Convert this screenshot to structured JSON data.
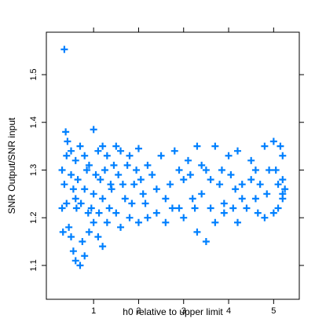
{
  "chart_data": {
    "type": "scatter",
    "x_label": "h0 relative to upper limit",
    "y_label": "SNR Output/SNR input",
    "color": "#0080ff",
    "xlim": [
      -0.05,
      5.57
    ],
    "ylim": [
      1.029,
      1.589
    ],
    "xticks": [
      1,
      2,
      3,
      4,
      5
    ],
    "yticks": [
      1.1,
      1.2,
      1.3,
      1.4,
      1.5
    ],
    "x": [
      0.35,
      0.38,
      1.0,
      0.3,
      0.4,
      0.5,
      0.6,
      0.7,
      0.8,
      0.9,
      1.1,
      1.2,
      1.3,
      1.5,
      1.6,
      1.8,
      2.0,
      2.2,
      2.5,
      2.8,
      3.1,
      3.3,
      3.5,
      3.7,
      4.0,
      4.2,
      4.5,
      4.8,
      5.0,
      5.15,
      5.2,
      4.9,
      5.25,
      5.1,
      5.2,
      4.6,
      4.3,
      4.1,
      3.9,
      3.6,
      3.4,
      3.2,
      3.0,
      2.7,
      2.4,
      2.1,
      1.9,
      1.7,
      1.4,
      1.2,
      1.0,
      0.8,
      0.6,
      0.4,
      0.3,
      0.45,
      0.5,
      0.55,
      0.6,
      0.7,
      0.8,
      0.75,
      0.9,
      1.0,
      1.1,
      1.2,
      1.3,
      1.5,
      1.6,
      1.8,
      2.0,
      2.2,
      2.4,
      2.6,
      2.9,
      3.0,
      3.3,
      3.5,
      3.7,
      3.9,
      4.2,
      4.4,
      4.6,
      4.8,
      5.0,
      5.2,
      0.35,
      0.5,
      0.65,
      0.85,
      0.95,
      1.05,
      1.15,
      1.25,
      1.35,
      1.45,
      1.55,
      1.65,
      1.75,
      1.85,
      1.95,
      2.05,
      2.3,
      2.6,
      2.9,
      3.15,
      3.4,
      3.6,
      3.8,
      4.05,
      4.3,
      4.5,
      4.7,
      4.85,
      5.05,
      5.2,
      0.42,
      0.62,
      0.72,
      0.55,
      0.88,
      0.32,
      1.12,
      1.38,
      2.15,
      2.75,
      3.25,
      3.85,
      4.15,
      4.65,
      5.1
    ],
    "values": [
      1.553,
      1.38,
      1.385,
      1.3,
      1.33,
      1.34,
      1.32,
      1.35,
      1.33,
      1.31,
      1.34,
      1.35,
      1.33,
      1.35,
      1.34,
      1.33,
      1.345,
      1.31,
      1.33,
      1.34,
      1.32,
      1.35,
      1.3,
      1.35,
      1.33,
      1.34,
      1.32,
      1.35,
      1.36,
      1.35,
      1.33,
      1.3,
      1.26,
      1.22,
      1.24,
      1.3,
      1.27,
      1.22,
      1.23,
      1.22,
      1.25,
      1.24,
      1.28,
      1.27,
      1.26,
      1.25,
      1.27,
      1.24,
      1.26,
      1.24,
      1.25,
      1.26,
      1.24,
      1.23,
      1.22,
      1.18,
      1.16,
      1.13,
      1.11,
      1.1,
      1.12,
      1.15,
      1.17,
      1.19,
      1.16,
      1.14,
      1.19,
      1.21,
      1.18,
      1.2,
      1.19,
      1.2,
      1.21,
      1.19,
      1.22,
      1.2,
      1.17,
      1.15,
      1.19,
      1.21,
      1.19,
      1.22,
      1.24,
      1.2,
      1.21,
      1.25,
      1.27,
      1.29,
      1.28,
      1.3,
      1.22,
      1.29,
      1.28,
      1.3,
      1.22,
      1.31,
      1.29,
      1.27,
      1.31,
      1.23,
      1.3,
      1.28,
      1.29,
      1.24,
      1.3,
      1.29,
      1.31,
      1.28,
      1.27,
      1.29,
      1.24,
      1.28,
      1.27,
      1.25,
      1.3,
      1.28,
      1.36,
      1.22,
      1.23,
      1.26,
      1.21,
      1.17,
      1.21,
      1.27,
      1.23,
      1.22,
      1.22,
      1.3,
      1.26,
      1.21,
      1.27
    ]
  }
}
